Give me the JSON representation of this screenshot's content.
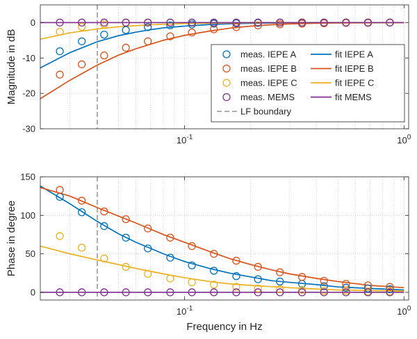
{
  "chart_data": [
    {
      "id": "magnitude",
      "type": "line",
      "xscale": "log",
      "xlim": [
        0.022,
        1.05
      ],
      "ylim": [
        -30,
        5
      ],
      "xticks": [
        0.1,
        1
      ],
      "xtick_labels": [
        {
          "base": "10",
          "exp": "-1"
        },
        {
          "base": "10",
          "exp": "0"
        }
      ],
      "yticks": [
        0,
        -10,
        -20,
        -30
      ],
      "ytick_labels": [
        "0",
        "-10",
        "-20",
        "-30"
      ],
      "xlabel": "",
      "ylabel": "Magnitude in dB",
      "grid": "dotted",
      "lf_boundary": 0.04,
      "legend": {
        "placement": "center-right",
        "entries": [
          {
            "label": "meas. IEPE A",
            "series": "IEPE A",
            "kind": "marker"
          },
          {
            "label": "fit IEPE A",
            "series": "IEPE A",
            "kind": "line"
          },
          {
            "label": "meas. IEPE B",
            "series": "IEPE B",
            "kind": "marker"
          },
          {
            "label": "fit IEPE B",
            "series": "IEPE B",
            "kind": "line"
          },
          {
            "label": "meas. IEPE C",
            "series": "IEPE C",
            "kind": "marker"
          },
          {
            "label": "fit IEPE C",
            "series": "IEPE C",
            "kind": "line"
          },
          {
            "label": "meas. MEMS",
            "series": "MEMS",
            "kind": "marker"
          },
          {
            "label": "fit MEMS",
            "series": "MEMS",
            "kind": "line"
          },
          {
            "label": "LF boundary",
            "series": "LF",
            "kind": "dashed"
          }
        ]
      },
      "series": [
        {
          "name": "IEPE A",
          "color": "#0072BD",
          "meas_x": [
            0.027,
            0.034,
            0.043,
            0.054,
            0.068,
            0.086,
            0.108,
            0.136,
            0.172,
            0.216,
            0.272,
            0.343,
            0.432,
            0.544,
            0.685,
            0.862
          ],
          "meas_y": [
            -8.1,
            -5.3,
            -3.4,
            -2.1,
            -1.3,
            -0.8,
            -0.5,
            -0.3,
            -0.2,
            -0.1,
            0,
            0,
            0,
            0,
            0,
            0
          ],
          "fit_x": [
            0.022,
            0.03,
            0.04,
            0.05,
            0.06,
            0.07,
            0.08,
            0.1,
            0.13,
            0.16,
            0.2,
            0.3,
            0.5,
            1.0
          ],
          "fit_y": [
            -12.8,
            -8.5,
            -5.4,
            -3.7,
            -2.7,
            -2.0,
            -1.5,
            -1.0,
            -0.55,
            -0.35,
            -0.22,
            -0.1,
            -0.03,
            0
          ]
        },
        {
          "name": "IEPE B",
          "color": "#D95319",
          "meas_x": [
            0.027,
            0.034,
            0.043,
            0.054,
            0.068,
            0.086,
            0.108,
            0.136,
            0.172,
            0.216,
            0.272,
            0.343,
            0.432,
            0.544,
            0.685,
            0.862
          ],
          "meas_y": [
            -14.7,
            -11.8,
            -9.3,
            -7.1,
            -5.3,
            -3.9,
            -2.8,
            -1.9,
            -1.3,
            -0.8,
            -0.5,
            -0.3,
            -0.2,
            -0.1,
            -0.1,
            0
          ],
          "fit_x": [
            0.022,
            0.03,
            0.04,
            0.05,
            0.06,
            0.08,
            0.1,
            0.13,
            0.16,
            0.2,
            0.25,
            0.3,
            0.4,
            0.5,
            0.7,
            1.0
          ],
          "fit_y": [
            -21.5,
            -16.3,
            -12.0,
            -9.2,
            -7.4,
            -5.0,
            -3.6,
            -2.4,
            -1.6,
            -1.0,
            -0.6,
            -0.4,
            -0.2,
            -0.12,
            -0.06,
            -0.03
          ]
        },
        {
          "name": "IEPE C",
          "color": "#EDB120",
          "meas_x": [
            0.027,
            0.034,
            0.043,
            0.054,
            0.068,
            0.086,
            0.108,
            0.136,
            0.172,
            0.216,
            0.272,
            0.343,
            0.432,
            0.544,
            0.685,
            0.862
          ],
          "meas_y": [
            -2.6,
            -1.2,
            -0.5,
            0,
            0,
            0,
            0,
            0,
            0,
            0,
            0,
            0,
            0,
            0,
            0,
            0
          ],
          "fit_x": [
            0.022,
            0.03,
            0.04,
            0.05,
            0.07,
            0.1,
            0.15,
            0.2,
            0.3,
            0.5,
            1.0
          ],
          "fit_y": [
            -4.7,
            -2.9,
            -1.8,
            -1.2,
            -0.6,
            -0.3,
            -0.12,
            -0.07,
            -0.03,
            -0.01,
            0
          ]
        },
        {
          "name": "MEMS",
          "color": "#7E2F8E",
          "meas_x": [
            0.027,
            0.034,
            0.043,
            0.054,
            0.068,
            0.086,
            0.108,
            0.136,
            0.172,
            0.216,
            0.272,
            0.343,
            0.432,
            0.544,
            0.685,
            0.862
          ],
          "meas_y": [
            0,
            0,
            0,
            0,
            0,
            0,
            0,
            0,
            0,
            0,
            0,
            0,
            0,
            0,
            0,
            0
          ],
          "fit_x": [
            0.022,
            1.0
          ],
          "fit_y": [
            0,
            0
          ]
        }
      ]
    },
    {
      "id": "phase",
      "type": "line",
      "xscale": "log",
      "xlim": [
        0.022,
        1.05
      ],
      "ylim": [
        -10,
        150
      ],
      "xticks": [
        0.1,
        1
      ],
      "xtick_labels": [
        {
          "base": "10",
          "exp": "-1"
        },
        {
          "base": "10",
          "exp": "0"
        }
      ],
      "yticks": [
        150,
        100,
        50,
        0
      ],
      "ytick_labels": [
        "150",
        "100",
        "50",
        "0"
      ],
      "xlabel": "Frequency in Hz",
      "ylabel": "Phase in degree",
      "grid": "dotted",
      "lf_boundary": 0.04,
      "series": [
        {
          "name": "IEPE A",
          "color": "#0072BD",
          "meas_x": [
            0.027,
            0.034,
            0.043,
            0.054,
            0.068,
            0.086,
            0.108,
            0.136,
            0.172,
            0.216,
            0.272,
            0.343,
            0.432,
            0.544,
            0.685,
            0.862
          ],
          "meas_y": [
            124,
            104,
            86,
            71,
            57,
            45,
            35,
            28,
            21,
            17,
            14,
            11,
            8,
            6,
            5,
            4
          ],
          "fit_x": [
            0.022,
            0.03,
            0.04,
            0.05,
            0.06,
            0.07,
            0.08,
            0.1,
            0.13,
            0.16,
            0.2,
            0.25,
            0.3,
            0.4,
            0.5,
            0.7,
            1.0
          ],
          "fit_y": [
            138,
            115,
            92,
            76,
            65,
            57,
            50,
            40,
            31,
            25,
            20,
            15,
            13,
            10,
            7,
            5,
            3
          ]
        },
        {
          "name": "IEPE B",
          "color": "#D95319",
          "meas_x": [
            0.027,
            0.034,
            0.043,
            0.054,
            0.068,
            0.086,
            0.108,
            0.136,
            0.172,
            0.216,
            0.272,
            0.343,
            0.432,
            0.544,
            0.685,
            0.862
          ],
          "meas_y": [
            133,
            119,
            105,
            95,
            83,
            71,
            60,
            50,
            41,
            33,
            26,
            20,
            15,
            11,
            9,
            7
          ],
          "fit_x": [
            0.022,
            0.03,
            0.04,
            0.05,
            0.06,
            0.07,
            0.08,
            0.1,
            0.13,
            0.16,
            0.2,
            0.25,
            0.3,
            0.4,
            0.5,
            0.7,
            1.0
          ],
          "fit_y": [
            136,
            125,
            110,
            99,
            90,
            82,
            75,
            65,
            53,
            44,
            36,
            29,
            24,
            18,
            14,
            9,
            6
          ]
        },
        {
          "name": "IEPE C",
          "color": "#EDB120",
          "meas_x": [
            0.027,
            0.034,
            0.043,
            0.054,
            0.068,
            0.086,
            0.108,
            0.136,
            0.172,
            0.216,
            0.272,
            0.343,
            0.432,
            0.544,
            0.685,
            0.862
          ],
          "meas_y": [
            73,
            58,
            44,
            33,
            24,
            18,
            13,
            10,
            7,
            5,
            4,
            3,
            2,
            2,
            1,
            1
          ],
          "fit_x": [
            0.022,
            0.03,
            0.04,
            0.05,
            0.06,
            0.08,
            0.1,
            0.13,
            0.16,
            0.2,
            0.3,
            0.5,
            1.0
          ],
          "fit_y": [
            60,
            50,
            42,
            36,
            31,
            24,
            19,
            14,
            11,
            9,
            6,
            3,
            1.5
          ]
        },
        {
          "name": "MEMS",
          "color": "#7E2F8E",
          "meas_x": [
            0.027,
            0.034,
            0.043,
            0.054,
            0.068,
            0.086,
            0.108,
            0.136,
            0.172,
            0.216,
            0.272,
            0.343,
            0.432,
            0.544,
            0.685,
            0.862
          ],
          "meas_y": [
            0,
            0,
            0,
            0,
            0,
            0,
            0,
            0,
            0,
            0,
            0,
            0,
            0,
            0,
            0,
            0
          ],
          "fit_x": [
            0.022,
            1.0
          ],
          "fit_y": [
            0,
            0
          ]
        }
      ]
    }
  ]
}
